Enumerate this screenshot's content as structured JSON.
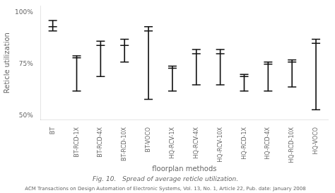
{
  "chart_data": {
    "type": "errorbar",
    "categories": [
      "BT",
      "BT-RCD-1X",
      "BT-RCD-4X",
      "BT-RCD-10X",
      "BT-VOCO",
      "HQ-RCV-1X",
      "HQ-RCV-4X",
      "HQ-RCV-10X",
      "HQ-RCD-1X",
      "HQ-RCD-4X",
      "HQ-RCD-10X",
      "HQ-VOCO"
    ],
    "values": [
      93,
      78,
      84,
      84,
      91,
      73,
      80,
      80,
      69,
      75,
      76,
      85
    ],
    "low": [
      91,
      62,
      69,
      76,
      58,
      62,
      65,
      65,
      62,
      62,
      64,
      53
    ],
    "high": [
      96,
      79,
      86,
      87,
      93,
      74,
      82,
      82,
      70,
      76,
      77,
      87
    ],
    "ylabel": "Reticle utilization",
    "xlabel": "floorplan methods",
    "caption": "Fig. 10.   Spread of average reticle utilization.",
    "footnote": "ACM Transactions on Design Automation of Electronic Systems, Vol. 13, No. 1, Article 22, Pub. date: January 2008",
    "ylim": [
      48,
      103
    ],
    "yticks": [
      {
        "value": 50,
        "label": "50%"
      },
      {
        "value": 75,
        "label": "75%"
      },
      {
        "value": 100,
        "label": "100%"
      }
    ],
    "color": "#111111",
    "grid": false
  }
}
